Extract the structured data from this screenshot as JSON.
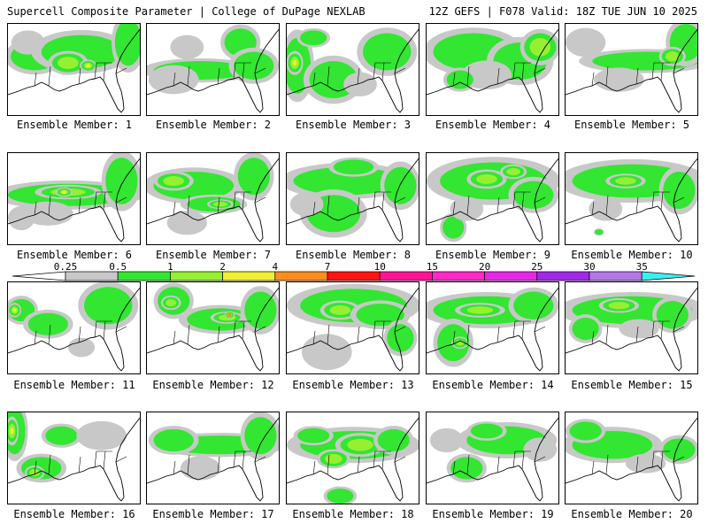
{
  "header": {
    "left": "Supercell Composite Parameter | College of DuPage NEXLAB",
    "right": "12Z GEFS | F078 Valid: 18Z TUE JUN 10 2025"
  },
  "colorbar": {
    "labels": [
      "0.25",
      "0.5",
      "1",
      "2",
      "4",
      "7",
      "10",
      "15",
      "20",
      "25",
      "30",
      "35"
    ],
    "colors": [
      "#c8c8c8",
      "#32e632",
      "#96f032",
      "#f0f032",
      "#ff8c1e",
      "#ff1414",
      "#ff1496",
      "#ff28c8",
      "#e628e6",
      "#a028e6",
      "#b478e6",
      "#3cf0f0"
    ]
  },
  "members": [
    {
      "label": "Ensemble Member: 1",
      "blobs": [
        [
          0.2,
          0.35,
          0.18,
          0.15,
          1
        ],
        [
          0.55,
          0.3,
          0.3,
          0.18,
          1
        ],
        [
          0.45,
          0.42,
          0.12,
          0.1,
          2
        ],
        [
          0.6,
          0.45,
          0.05,
          0.05,
          3
        ],
        [
          0.9,
          0.2,
          0.1,
          0.25,
          1
        ],
        [
          0.15,
          0.2,
          0.1,
          0.1,
          0
        ]
      ]
    },
    {
      "label": "Ensemble Member: 2",
      "blobs": [
        [
          0.4,
          0.5,
          0.35,
          0.1,
          1
        ],
        [
          0.2,
          0.6,
          0.15,
          0.12,
          0
        ],
        [
          0.7,
          0.2,
          0.12,
          0.15,
          1
        ],
        [
          0.8,
          0.45,
          0.15,
          0.15,
          1
        ],
        [
          0.3,
          0.25,
          0.1,
          0.1,
          0
        ]
      ]
    },
    {
      "label": "Ensemble Member: 3",
      "blobs": [
        [
          0.08,
          0.45,
          0.1,
          0.3,
          1
        ],
        [
          0.06,
          0.42,
          0.05,
          0.1,
          3
        ],
        [
          0.35,
          0.6,
          0.18,
          0.2,
          1
        ],
        [
          0.75,
          0.3,
          0.18,
          0.2,
          1
        ],
        [
          0.2,
          0.15,
          0.1,
          0.08,
          1
        ],
        [
          0.55,
          0.65,
          0.1,
          0.1,
          0
        ]
      ]
    },
    {
      "label": "Ensemble Member: 4",
      "blobs": [
        [
          0.35,
          0.3,
          0.3,
          0.2,
          1
        ],
        [
          0.7,
          0.4,
          0.2,
          0.2,
          1
        ],
        [
          0.45,
          0.55,
          0.15,
          0.12,
          0
        ],
        [
          0.85,
          0.25,
          0.12,
          0.15,
          2
        ],
        [
          0.25,
          0.6,
          0.1,
          0.1,
          1
        ]
      ]
    },
    {
      "label": "Ensemble Member: 5",
      "blobs": [
        [
          0.6,
          0.4,
          0.4,
          0.1,
          1
        ],
        [
          0.9,
          0.2,
          0.12,
          0.2,
          1
        ],
        [
          0.15,
          0.2,
          0.12,
          0.12,
          0
        ],
        [
          0.4,
          0.6,
          0.15,
          0.1,
          0
        ],
        [
          0.8,
          0.35,
          0.08,
          0.08,
          2
        ]
      ]
    },
    {
      "label": "Ensemble Member: 6",
      "blobs": [
        [
          0.45,
          0.45,
          0.45,
          0.12,
          1
        ],
        [
          0.45,
          0.42,
          0.2,
          0.06,
          2
        ],
        [
          0.42,
          0.42,
          0.05,
          0.04,
          3
        ],
        [
          0.85,
          0.3,
          0.12,
          0.25,
          1
        ],
        [
          0.3,
          0.65,
          0.15,
          0.1,
          0
        ],
        [
          0.1,
          0.7,
          0.08,
          0.1,
          0
        ]
      ]
    },
    {
      "label": "Ensemble Member: 7",
      "blobs": [
        [
          0.35,
          0.35,
          0.3,
          0.15,
          1
        ],
        [
          0.2,
          0.3,
          0.12,
          0.08,
          2
        ],
        [
          0.5,
          0.55,
          0.2,
          0.08,
          1
        ],
        [
          0.55,
          0.55,
          0.08,
          0.04,
          2
        ],
        [
          0.8,
          0.25,
          0.12,
          0.2,
          1
        ],
        [
          0.3,
          0.75,
          0.12,
          0.1,
          0
        ]
      ]
    },
    {
      "label": "Ensemble Member: 8",
      "blobs": [
        [
          0.45,
          0.3,
          0.4,
          0.15,
          1
        ],
        [
          0.35,
          0.65,
          0.2,
          0.2,
          1
        ],
        [
          0.85,
          0.35,
          0.12,
          0.2,
          1
        ],
        [
          0.15,
          0.55,
          0.1,
          0.1,
          0
        ],
        [
          0.5,
          0.15,
          0.15,
          0.08,
          1
        ]
      ]
    },
    {
      "label": "Ensemble Member: 9",
      "blobs": [
        [
          0.5,
          0.3,
          0.4,
          0.2,
          1
        ],
        [
          0.45,
          0.28,
          0.12,
          0.08,
          2
        ],
        [
          0.2,
          0.8,
          0.08,
          0.12,
          1
        ],
        [
          0.8,
          0.45,
          0.15,
          0.15,
          1
        ],
        [
          0.65,
          0.2,
          0.08,
          0.06,
          2
        ],
        [
          0.3,
          0.6,
          0.1,
          0.1,
          0
        ]
      ]
    },
    {
      "label": "Ensemble Member: 10",
      "blobs": [
        [
          0.5,
          0.3,
          0.45,
          0.18,
          1
        ],
        [
          0.45,
          0.3,
          0.12,
          0.06,
          2
        ],
        [
          0.85,
          0.4,
          0.12,
          0.2,
          1
        ],
        [
          0.3,
          0.6,
          0.1,
          0.1,
          0
        ],
        [
          0.25,
          0.85,
          0.03,
          0.03,
          1
        ]
      ]
    },
    {
      "label": "Ensemble Member: 11",
      "blobs": [
        [
          0.1,
          0.3,
          0.1,
          0.12,
          1
        ],
        [
          0.05,
          0.3,
          0.04,
          0.06,
          3
        ],
        [
          0.3,
          0.45,
          0.15,
          0.12,
          1
        ],
        [
          0.75,
          0.25,
          0.18,
          0.2,
          1
        ],
        [
          0.55,
          0.7,
          0.08,
          0.08,
          0
        ]
      ]
    },
    {
      "label": "Ensemble Member: 12",
      "blobs": [
        [
          0.2,
          0.2,
          0.12,
          0.15,
          1
        ],
        [
          0.18,
          0.22,
          0.06,
          0.06,
          2
        ],
        [
          0.55,
          0.4,
          0.25,
          0.12,
          1
        ],
        [
          0.6,
          0.38,
          0.1,
          0.05,
          2
        ],
        [
          0.62,
          0.35,
          0.03,
          0.03,
          4
        ],
        [
          0.85,
          0.3,
          0.12,
          0.2,
          1
        ]
      ]
    },
    {
      "label": "Ensemble Member: 13",
      "blobs": [
        [
          0.5,
          0.25,
          0.4,
          0.18,
          1
        ],
        [
          0.4,
          0.3,
          0.12,
          0.08,
          2
        ],
        [
          0.7,
          0.35,
          0.18,
          0.12,
          1
        ],
        [
          0.3,
          0.75,
          0.15,
          0.15,
          0
        ],
        [
          0.85,
          0.6,
          0.1,
          0.15,
          1
        ]
      ]
    },
    {
      "label": "Ensemble Member: 14",
      "blobs": [
        [
          0.45,
          0.3,
          0.4,
          0.15,
          1
        ],
        [
          0.4,
          0.3,
          0.15,
          0.06,
          2
        ],
        [
          0.2,
          0.65,
          0.12,
          0.2,
          1
        ],
        [
          0.25,
          0.65,
          0.05,
          0.05,
          2
        ],
        [
          0.8,
          0.25,
          0.15,
          0.15,
          1
        ]
      ]
    },
    {
      "label": "Ensemble Member: 15",
      "blobs": [
        [
          0.5,
          0.3,
          0.45,
          0.15,
          1
        ],
        [
          0.4,
          0.25,
          0.12,
          0.06,
          2
        ],
        [
          0.8,
          0.35,
          0.12,
          0.15,
          1
        ],
        [
          0.15,
          0.5,
          0.1,
          0.12,
          1
        ],
        [
          0.55,
          0.5,
          0.12,
          0.08,
          0
        ]
      ]
    },
    {
      "label": "Ensemble Member: 16",
      "blobs": [
        [
          0.05,
          0.2,
          0.08,
          0.25,
          1
        ],
        [
          0.03,
          0.2,
          0.04,
          0.12,
          3
        ],
        [
          0.25,
          0.6,
          0.15,
          0.12,
          1
        ],
        [
          0.2,
          0.65,
          0.06,
          0.06,
          2
        ],
        [
          0.4,
          0.25,
          0.12,
          0.1,
          1
        ],
        [
          0.7,
          0.25,
          0.15,
          0.12,
          0
        ]
      ]
    },
    {
      "label": "Ensemble Member: 17",
      "blobs": [
        [
          0.55,
          0.35,
          0.4,
          0.1,
          1
        ],
        [
          0.2,
          0.3,
          0.15,
          0.12,
          1
        ],
        [
          0.85,
          0.25,
          0.12,
          0.2,
          1
        ],
        [
          0.4,
          0.6,
          0.12,
          0.1,
          0
        ]
      ]
    },
    {
      "label": "Ensemble Member: 18",
      "blobs": [
        [
          0.5,
          0.35,
          0.4,
          0.15,
          1
        ],
        [
          0.55,
          0.35,
          0.15,
          0.1,
          2
        ],
        [
          0.35,
          0.5,
          0.1,
          0.08,
          2
        ],
        [
          0.4,
          0.9,
          0.1,
          0.08,
          1
        ],
        [
          0.8,
          0.3,
          0.12,
          0.12,
          1
        ],
        [
          0.2,
          0.25,
          0.12,
          0.08,
          1
        ]
      ]
    },
    {
      "label": "Ensemble Member: 19",
      "blobs": [
        [
          0.6,
          0.3,
          0.3,
          0.15,
          1
        ],
        [
          0.3,
          0.6,
          0.12,
          0.12,
          1
        ],
        [
          0.45,
          0.2,
          0.12,
          0.08,
          1
        ],
        [
          0.15,
          0.3,
          0.1,
          0.1,
          0
        ],
        [
          0.85,
          0.4,
          0.1,
          0.1,
          0
        ]
      ]
    },
    {
      "label": "Ensemble Member: 20",
      "blobs": [
        [
          0.35,
          0.35,
          0.3,
          0.15,
          1
        ],
        [
          0.15,
          0.2,
          0.12,
          0.1,
          1
        ],
        [
          0.85,
          0.4,
          0.12,
          0.12,
          1
        ],
        [
          0.6,
          0.55,
          0.12,
          0.08,
          0
        ]
      ]
    }
  ]
}
